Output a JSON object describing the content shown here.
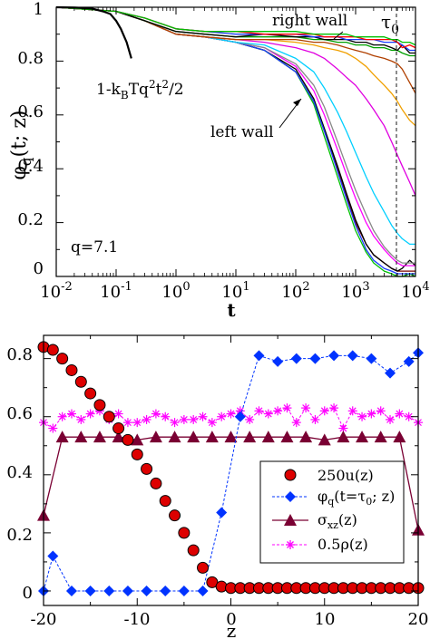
{
  "chart_data": [
    {
      "type": "line",
      "xscale": "log",
      "xlim": [
        0.01,
        10000
      ],
      "ylim": [
        0,
        1
      ],
      "xlabel": "t",
      "ylabel": "φq(t; z)",
      "xticklabels": [
        "10-2",
        "10-1",
        "100",
        "101",
        "102",
        "103",
        "104"
      ],
      "yticklabels": [
        "0",
        "0.2",
        "0.4",
        "0.6",
        "0.8",
        "1"
      ],
      "annotations": {
        "right_wall": "right wall",
        "left_wall": "left wall",
        "q_label": "q=7.1",
        "tau0": "τ0",
        "fit": "1-kBTq2t2/2"
      },
      "tau0_x": 5000,
      "fit_curve": {
        "color": "#000000",
        "x": [
          0.01,
          0.02,
          0.04,
          0.06,
          0.08,
          0.1,
          0.12,
          0.15,
          0.18
        ],
        "y": [
          1.0,
          0.999,
          0.995,
          0.985,
          0.975,
          0.95,
          0.92,
          0.87,
          0.81
        ]
      },
      "x": [
        0.01,
        0.1,
        0.3,
        1,
        3,
        10,
        30,
        100,
        200,
        300,
        500,
        700,
        1000,
        1500,
        2000,
        3000,
        4000,
        5000,
        6000,
        8000,
        10000
      ],
      "series": [
        {
          "color": "#7a0000",
          "values": [
            1.0,
            0.985,
            0.95,
            0.9,
            0.89,
            0.87,
            0.84,
            0.76,
            0.65,
            0.54,
            0.4,
            0.3,
            0.2,
            0.12,
            0.08,
            0.05,
            0.03,
            0.02,
            0.02,
            0.02,
            0.02
          ]
        },
        {
          "color": "#000000",
          "values": [
            1.0,
            0.985,
            0.95,
            0.9,
            0.89,
            0.87,
            0.84,
            0.77,
            0.66,
            0.55,
            0.41,
            0.31,
            0.21,
            0.12,
            0.08,
            0.05,
            0.03,
            0.02,
            0.03,
            0.06,
            0.04
          ]
        },
        {
          "color": "#00c000",
          "values": [
            1.0,
            0.985,
            0.95,
            0.9,
            0.89,
            0.87,
            0.84,
            0.76,
            0.64,
            0.52,
            0.37,
            0.27,
            0.17,
            0.09,
            0.05,
            0.02,
            0.01,
            0.0,
            0.0,
            0.01,
            0.0
          ]
        },
        {
          "color": "#1a3cff",
          "values": [
            1.0,
            0.985,
            0.95,
            0.9,
            0.89,
            0.87,
            0.84,
            0.76,
            0.65,
            0.54,
            0.39,
            0.29,
            0.19,
            0.1,
            0.06,
            0.03,
            0.02,
            0.01,
            0.01,
            0.01,
            0.01
          ]
        },
        {
          "color": "#ff00ff",
          "values": [
            1.0,
            0.985,
            0.95,
            0.9,
            0.89,
            0.87,
            0.85,
            0.78,
            0.69,
            0.6,
            0.47,
            0.38,
            0.29,
            0.2,
            0.15,
            0.1,
            0.07,
            0.05,
            0.04,
            0.04,
            0.04
          ]
        },
        {
          "color": "#888888",
          "values": [
            1.0,
            0.985,
            0.95,
            0.9,
            0.89,
            0.87,
            0.85,
            0.79,
            0.71,
            0.63,
            0.5,
            0.41,
            0.32,
            0.23,
            0.17,
            0.11,
            0.08,
            0.06,
            0.05,
            0.05,
            0.05
          ]
        },
        {
          "color": "#00cfff",
          "values": [
            1.0,
            0.985,
            0.95,
            0.9,
            0.89,
            0.87,
            0.86,
            0.81,
            0.76,
            0.7,
            0.61,
            0.54,
            0.46,
            0.37,
            0.31,
            0.24,
            0.19,
            0.16,
            0.14,
            0.12,
            0.12
          ]
        },
        {
          "color": "#e000e0",
          "values": [
            1.0,
            0.985,
            0.95,
            0.9,
            0.89,
            0.88,
            0.87,
            0.85,
            0.83,
            0.81,
            0.77,
            0.74,
            0.71,
            0.66,
            0.62,
            0.56,
            0.5,
            0.45,
            0.41,
            0.35,
            0.3
          ]
        },
        {
          "color": "#f0a000",
          "values": [
            1.0,
            0.985,
            0.95,
            0.9,
            0.89,
            0.88,
            0.88,
            0.87,
            0.86,
            0.85,
            0.84,
            0.83,
            0.81,
            0.78,
            0.75,
            0.71,
            0.68,
            0.65,
            0.62,
            0.58,
            0.56
          ]
        },
        {
          "color": "#b04000",
          "values": [
            1.0,
            0.985,
            0.95,
            0.9,
            0.89,
            0.88,
            0.88,
            0.88,
            0.87,
            0.87,
            0.86,
            0.85,
            0.84,
            0.83,
            0.82,
            0.81,
            0.8,
            0.79,
            0.77,
            0.72,
            0.68
          ]
        },
        {
          "color": "#00a000",
          "values": [
            1.0,
            0.985,
            0.95,
            0.91,
            0.9,
            0.89,
            0.89,
            0.89,
            0.88,
            0.88,
            0.87,
            0.87,
            0.86,
            0.86,
            0.85,
            0.85,
            0.84,
            0.84,
            0.83,
            0.82,
            0.82
          ]
        },
        {
          "color": "#000000",
          "values": [
            1.0,
            0.985,
            0.95,
            0.91,
            0.9,
            0.89,
            0.9,
            0.89,
            0.89,
            0.88,
            0.88,
            0.88,
            0.87,
            0.87,
            0.86,
            0.86,
            0.85,
            0.84,
            0.86,
            0.83,
            0.83
          ]
        },
        {
          "color": "#1a3cff",
          "values": [
            1.0,
            0.985,
            0.96,
            0.92,
            0.91,
            0.9,
            0.9,
            0.9,
            0.89,
            0.89,
            0.89,
            0.88,
            0.88,
            0.88,
            0.88,
            0.87,
            0.87,
            0.87,
            0.86,
            0.84,
            0.84
          ]
        },
        {
          "color": "#ff0000",
          "values": [
            1.0,
            0.985,
            0.96,
            0.92,
            0.91,
            0.91,
            0.9,
            0.9,
            0.9,
            0.89,
            0.89,
            0.89,
            0.89,
            0.88,
            0.88,
            0.88,
            0.88,
            0.87,
            0.85,
            0.86,
            0.85
          ]
        },
        {
          "color": "#00c000",
          "values": [
            1.0,
            0.985,
            0.96,
            0.92,
            0.91,
            0.91,
            0.91,
            0.91,
            0.9,
            0.9,
            0.9,
            0.9,
            0.89,
            0.89,
            0.89,
            0.89,
            0.88,
            0.88,
            0.87,
            0.87,
            0.86
          ]
        }
      ]
    },
    {
      "type": "scatter",
      "xlim": [
        -20,
        20
      ],
      "ylim": [
        -0.05,
        0.88
      ],
      "xlabel": "z",
      "xticklabels": [
        "-20",
        "-10",
        "0",
        "10",
        "20"
      ],
      "yticklabels": [
        "0",
        "0.2",
        "0.4",
        "0.6",
        "0.8"
      ],
      "tau0_label": "φq(t=τ0; z)",
      "series": [
        {
          "name": "250u(z)",
          "color": "#dd0000",
          "marker": "circle",
          "x": [
            -20,
            -19,
            -18,
            -17,
            -16,
            -15,
            -14,
            -13,
            -12,
            -11,
            -10,
            -9,
            -8,
            -7,
            -6,
            -5,
            -4,
            -3,
            -2,
            -1,
            0,
            1,
            2,
            3,
            4,
            5,
            6,
            7,
            8,
            9,
            10,
            11,
            12,
            13,
            14,
            15,
            16,
            17,
            18,
            19,
            20
          ],
          "y": [
            0.84,
            0.83,
            0.8,
            0.76,
            0.72,
            0.68,
            0.64,
            0.6,
            0.56,
            0.52,
            0.47,
            0.42,
            0.37,
            0.31,
            0.26,
            0.2,
            0.14,
            0.08,
            0.03,
            0.015,
            0.01,
            0.01,
            0.01,
            0.01,
            0.01,
            0.01,
            0.01,
            0.01,
            0.01,
            0.01,
            0.01,
            0.01,
            0.01,
            0.01,
            0.01,
            0.01,
            0.01,
            0.01,
            0.01,
            0.01,
            0.01
          ]
        },
        {
          "name": "φq(t=τ0; z)",
          "color": "#0033ff",
          "marker": "diamond",
          "x": [
            -20,
            -19,
            -17,
            -15,
            -13,
            -11,
            -9,
            -7,
            -5,
            -3,
            -1,
            1,
            3,
            5,
            7,
            9,
            11,
            13,
            15,
            17,
            19,
            20
          ],
          "y": [
            0.0,
            0.12,
            0.0,
            0.0,
            0.0,
            0.0,
            0.0,
            0.0,
            0.0,
            0.0,
            0.27,
            0.6,
            0.81,
            0.79,
            0.8,
            0.8,
            0.81,
            0.81,
            0.8,
            0.75,
            0.79,
            0.82
          ]
        },
        {
          "name": "σxz(z)",
          "color": "#7a0033",
          "marker": "triangle",
          "x": [
            -20,
            -18,
            -16,
            -14,
            -12,
            -10,
            -8,
            -6,
            -4,
            -2,
            0,
            2,
            4,
            6,
            8,
            10,
            12,
            14,
            16,
            18,
            20
          ],
          "y": [
            0.26,
            0.53,
            0.53,
            0.53,
            0.53,
            0.52,
            0.53,
            0.53,
            0.53,
            0.53,
            0.53,
            0.53,
            0.53,
            0.53,
            0.53,
            0.52,
            0.53,
            0.53,
            0.53,
            0.53,
            0.21
          ]
        },
        {
          "name": "0.5ρ(z)",
          "color": "#ff00ff",
          "marker": "star",
          "x": [
            -20,
            -19,
            -18,
            -17,
            -16,
            -15,
            -14,
            -13,
            -12,
            -11,
            -10,
            -9,
            -8,
            -7,
            -6,
            -5,
            -4,
            -3,
            -2,
            -1,
            0,
            1,
            2,
            3,
            4,
            5,
            6,
            7,
            8,
            9,
            10,
            11,
            12,
            13,
            14,
            15,
            16,
            17,
            18,
            19,
            20
          ],
          "y": [
            0.58,
            0.56,
            0.6,
            0.61,
            0.59,
            0.61,
            0.62,
            0.59,
            0.61,
            0.58,
            0.58,
            0.59,
            0.61,
            0.6,
            0.58,
            0.59,
            0.59,
            0.6,
            0.58,
            0.6,
            0.61,
            0.62,
            0.59,
            0.62,
            0.61,
            0.62,
            0.63,
            0.58,
            0.63,
            0.59,
            0.62,
            0.63,
            0.56,
            0.62,
            0.6,
            0.61,
            0.62,
            0.59,
            0.61,
            0.6,
            0.58
          ]
        }
      ],
      "legend": {
        "position": "lower-right",
        "entries": [
          "250u(z)",
          "φq(t=τ0; z)",
          "σxz(z)",
          "0.5ρ(z)"
        ]
      }
    }
  ]
}
